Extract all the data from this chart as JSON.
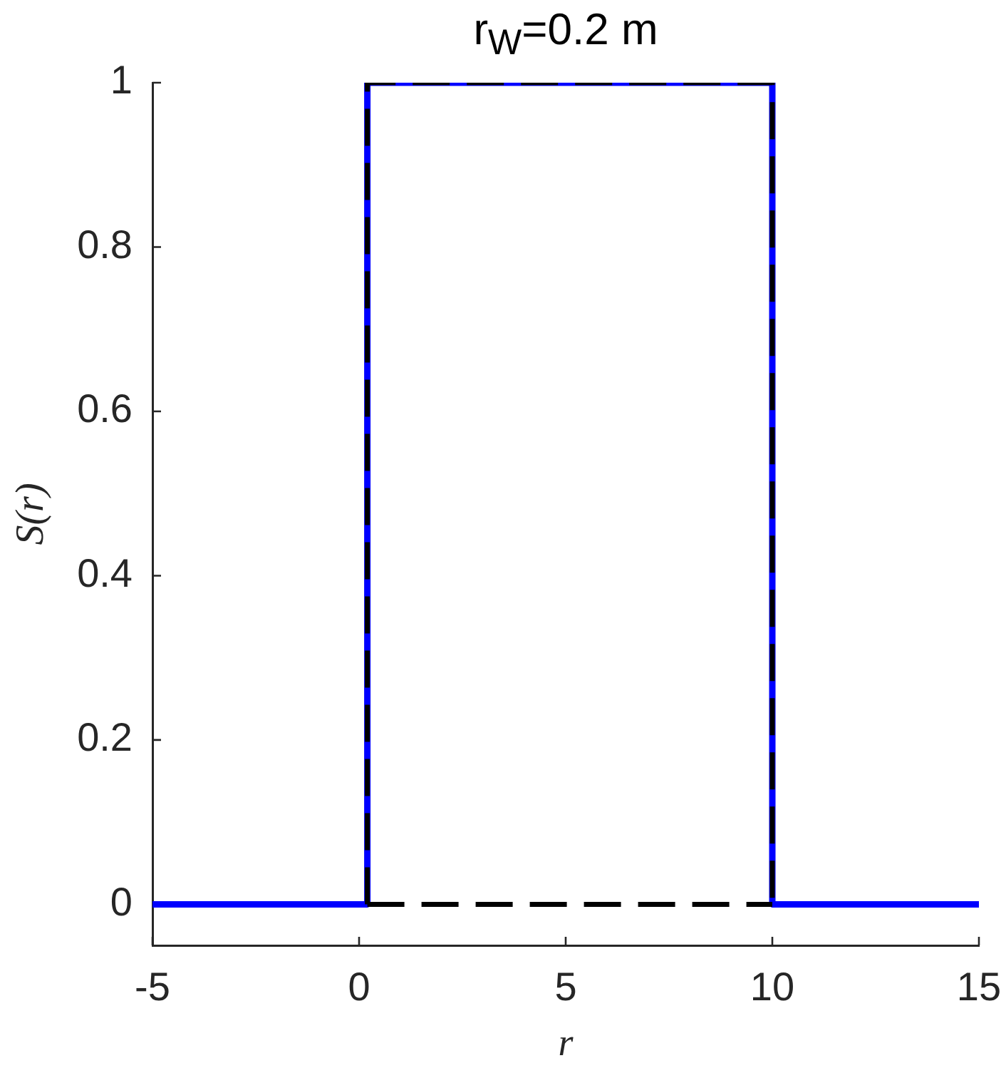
{
  "chart_data": {
    "type": "line",
    "title": "r$_{W}$=0.2 m",
    "xlabel": "r",
    "ylabel": "S(r)",
    "xlim": [
      -5,
      15
    ],
    "xticks": [
      -5,
      0,
      5,
      10,
      15
    ],
    "ylim": [
      -0.05,
      1
    ],
    "yticks": [
      0,
      0.2,
      0.4,
      0.6,
      0.8,
      1
    ],
    "grid": false,
    "legend": false,
    "marker": "none",
    "series": [
      {
        "color": "#0000ff",
        "line_style": "solid",
        "x": [
          -5,
          0.2,
          0.2,
          10,
          10,
          15
        ],
        "values": [
          0,
          0,
          1,
          1,
          0,
          0
        ]
      },
      {
        "color": "#000000",
        "line_style": "dashed",
        "x": [
          0.2,
          0.2,
          10,
          10
        ],
        "values": [
          0,
          1,
          1,
          0
        ]
      },
      {
        "color": "#000000",
        "line_style": "dashed",
        "x": [
          0.2,
          10
        ],
        "values": [
          0,
          0
        ]
      }
    ]
  }
}
